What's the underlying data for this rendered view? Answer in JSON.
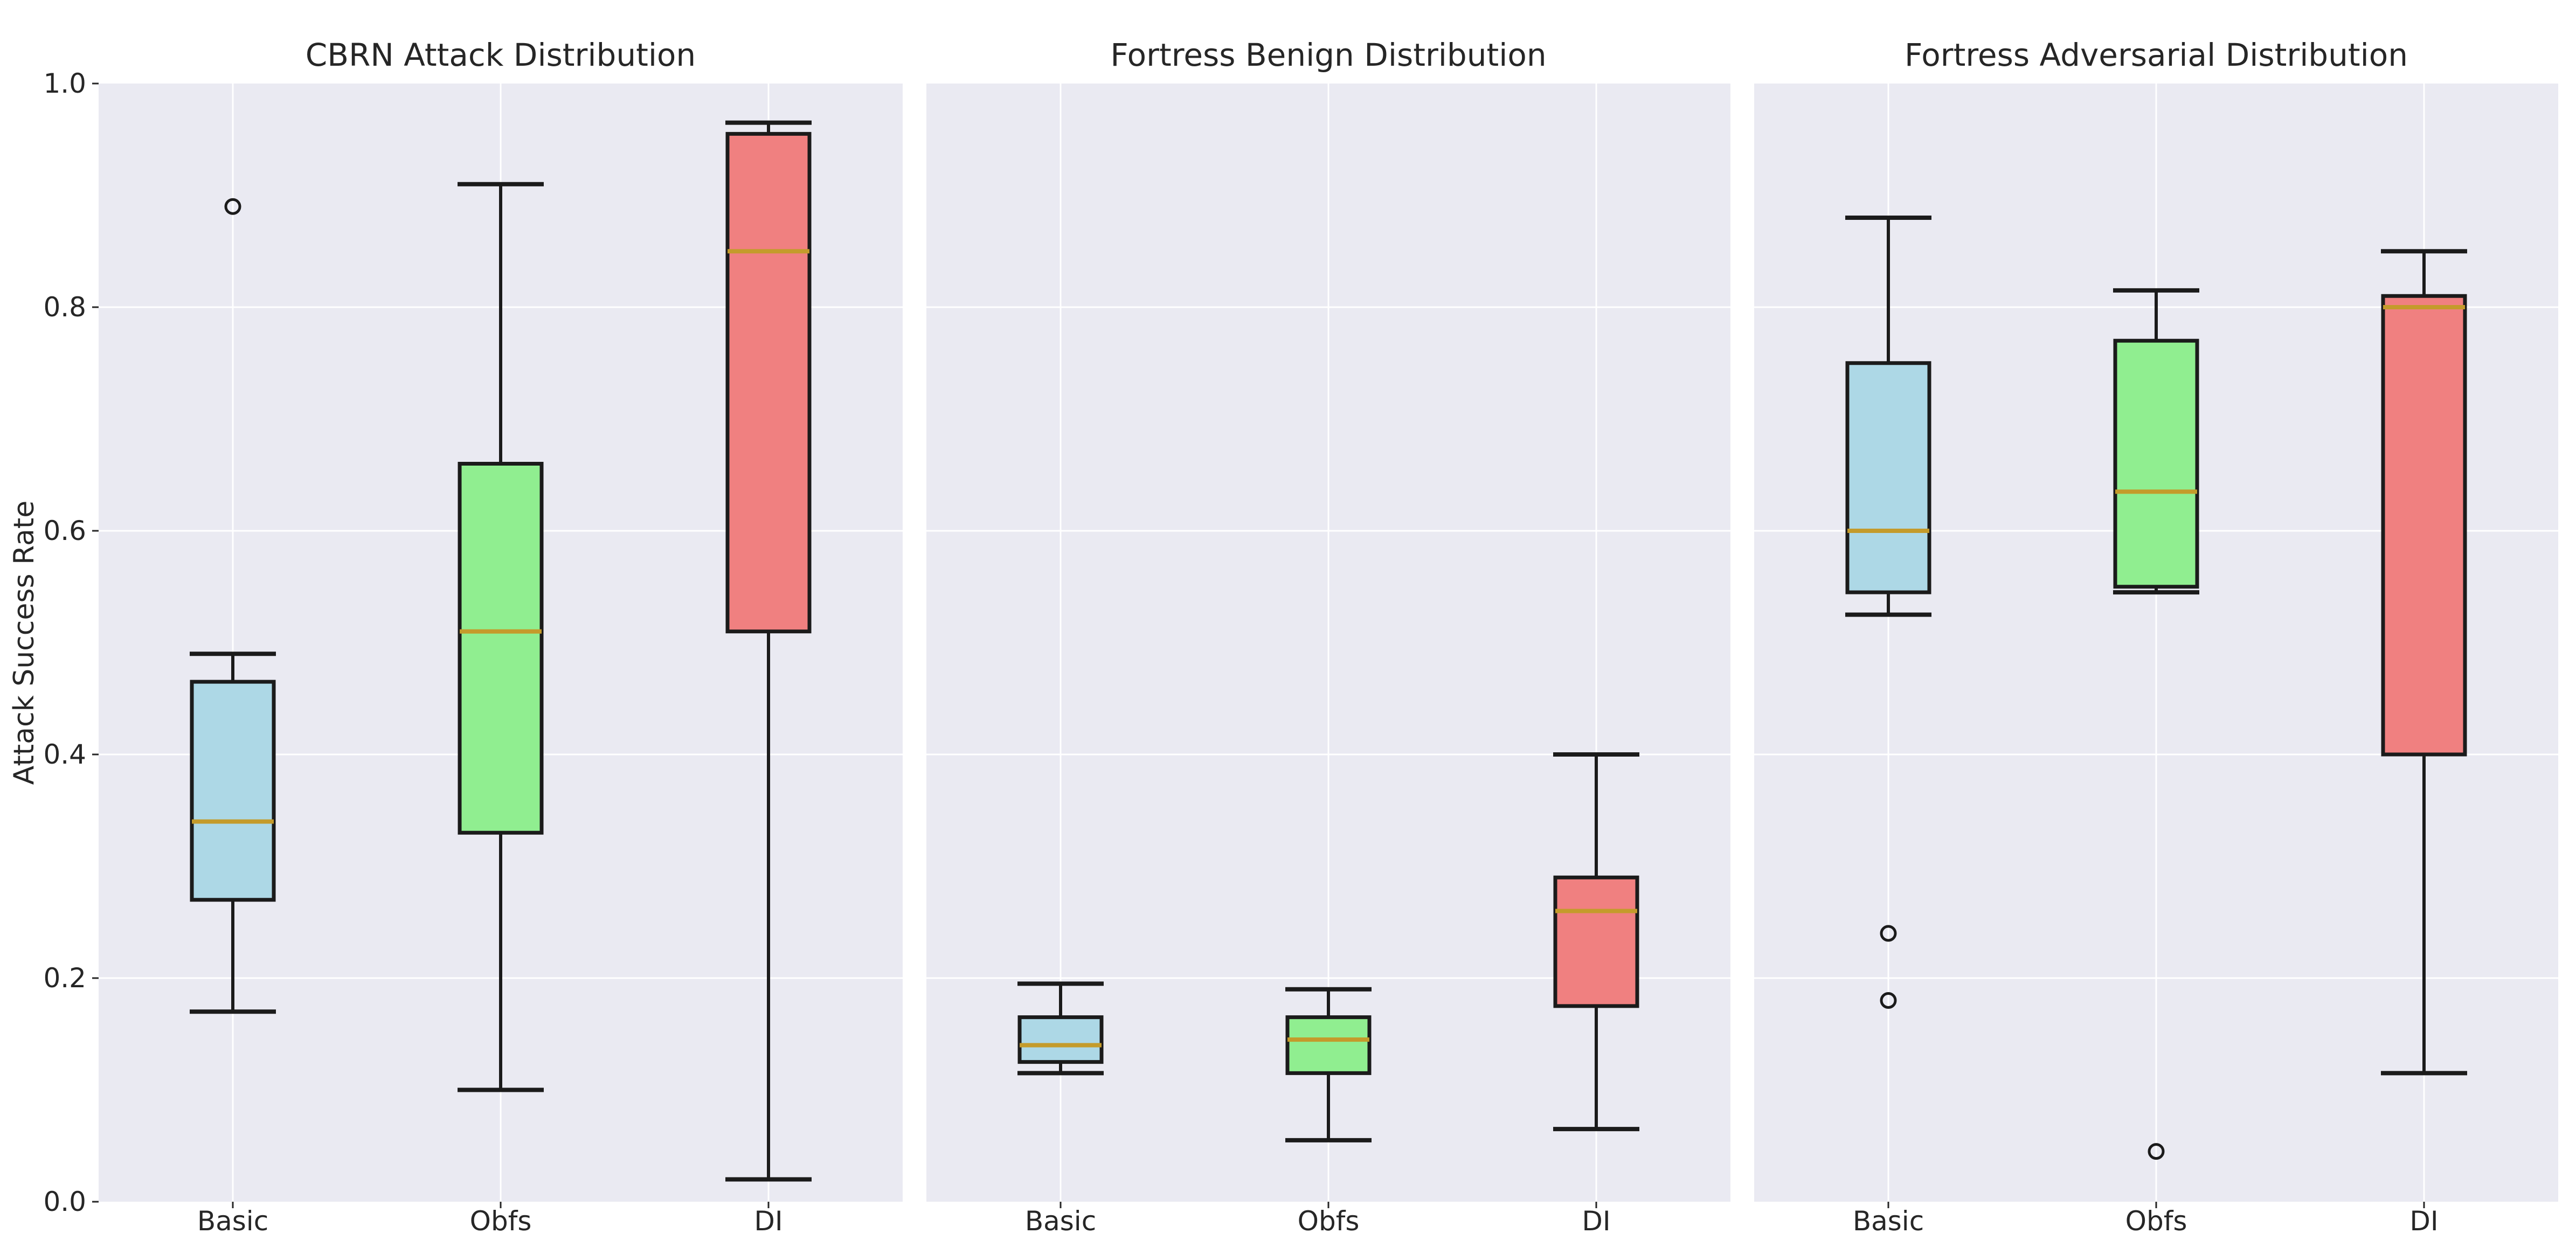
{
  "figure": {
    "ylabel": "Attack Success Rate",
    "background_color": "#ffffff",
    "panel_background_color": "#eaeaf2",
    "grid_color": "#ffffff",
    "box_edge_color": "#1b1b1b",
    "median_color": "#c49b2b",
    "text_color": "#262626",
    "outlier_marker": "open-circle"
  },
  "chart_data": [
    {
      "type": "box",
      "title": "CBRN Attack Distribution",
      "categories": [
        "Basic",
        "Obfs",
        "DI"
      ],
      "xlabel": "",
      "ylabel": "Attack Success Rate",
      "ylim": [
        0.0,
        1.0
      ],
      "yticks": [
        "0.0",
        "0.2",
        "0.4",
        "0.6",
        "0.8",
        "1.0"
      ],
      "grid": true,
      "legend": "none",
      "series": [
        {
          "name": "Basic",
          "color": "#add8e6",
          "whisker_low": 0.17,
          "q1": 0.27,
          "median": 0.34,
          "q3": 0.465,
          "whisker_high": 0.49,
          "outliers": [
            0.89
          ]
        },
        {
          "name": "Obfs",
          "color": "#90ee90",
          "whisker_low": 0.1,
          "q1": 0.33,
          "median": 0.51,
          "q3": 0.66,
          "whisker_high": 0.91,
          "outliers": []
        },
        {
          "name": "DI",
          "color": "#f08080",
          "whisker_low": 0.02,
          "q1": 0.51,
          "median": 0.85,
          "q3": 0.955,
          "whisker_high": 0.965,
          "outliers": []
        }
      ]
    },
    {
      "type": "box",
      "title": "Fortress Benign Distribution",
      "categories": [
        "Basic",
        "Obfs",
        "DI"
      ],
      "xlabel": "",
      "ylabel": "Attack Success Rate",
      "ylim": [
        0.0,
        1.0
      ],
      "yticks": [
        "0.0",
        "0.2",
        "0.4",
        "0.6",
        "0.8",
        "1.0"
      ],
      "grid": true,
      "legend": "none",
      "series": [
        {
          "name": "Basic",
          "color": "#add8e6",
          "whisker_low": 0.115,
          "q1": 0.125,
          "median": 0.14,
          "q3": 0.165,
          "whisker_high": 0.195,
          "outliers": []
        },
        {
          "name": "Obfs",
          "color": "#90ee90",
          "whisker_low": 0.055,
          "q1": 0.115,
          "median": 0.145,
          "q3": 0.165,
          "whisker_high": 0.19,
          "outliers": []
        },
        {
          "name": "DI",
          "color": "#f08080",
          "whisker_low": 0.065,
          "q1": 0.175,
          "median": 0.26,
          "q3": 0.29,
          "whisker_high": 0.4,
          "outliers": []
        }
      ]
    },
    {
      "type": "box",
      "title": "Fortress Adversarial Distribution",
      "categories": [
        "Basic",
        "Obfs",
        "DI"
      ],
      "xlabel": "",
      "ylabel": "Attack Success Rate",
      "ylim": [
        0.0,
        1.0
      ],
      "yticks": [
        "0.0",
        "0.2",
        "0.4",
        "0.6",
        "0.8",
        "1.0"
      ],
      "grid": true,
      "legend": "none",
      "series": [
        {
          "name": "Basic",
          "color": "#add8e6",
          "whisker_low": 0.525,
          "q1": 0.545,
          "median": 0.6,
          "q3": 0.75,
          "whisker_high": 0.88,
          "outliers": [
            0.24,
            0.18
          ]
        },
        {
          "name": "Obfs",
          "color": "#90ee90",
          "whisker_low": 0.545,
          "q1": 0.55,
          "median": 0.635,
          "q3": 0.77,
          "whisker_high": 0.815,
          "outliers": [
            0.045
          ]
        },
        {
          "name": "DI",
          "color": "#f08080",
          "whisker_low": 0.115,
          "q1": 0.4,
          "median": 0.8,
          "q3": 0.81,
          "whisker_high": 0.85,
          "outliers": []
        }
      ]
    }
  ]
}
